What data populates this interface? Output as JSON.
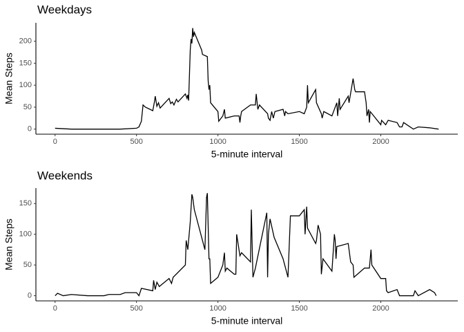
{
  "chart_data": [
    {
      "type": "line",
      "title": "Weekdays",
      "xlabel": "5-minute interval",
      "ylabel": "Mean Steps",
      "color": "#000000",
      "x": [
        0,
        100,
        200,
        300,
        400,
        500,
        515,
        530,
        540,
        555,
        600,
        610,
        615,
        625,
        635,
        645,
        700,
        710,
        720,
        730,
        745,
        755,
        800,
        810,
        815,
        820,
        830,
        835,
        840,
        845,
        850,
        855,
        900,
        905,
        935,
        940,
        945,
        950,
        955,
        1000,
        1005,
        1030,
        1040,
        1045,
        1100,
        1130,
        1135,
        1140,
        1145,
        1200,
        1230,
        1235,
        1245,
        1255,
        1305,
        1310,
        1320,
        1330,
        1340,
        1350,
        1400,
        1410,
        1415,
        1430,
        1500,
        1530,
        1545,
        1550,
        1555,
        1600,
        1605,
        1635,
        1640,
        1650,
        1700,
        1730,
        1735,
        1745,
        1750,
        1800,
        1805,
        1830,
        1840,
        1845,
        1900,
        1910,
        1915,
        1925,
        1930,
        1935,
        2000,
        2005,
        2030,
        2045,
        2100,
        2115,
        2130,
        2140,
        2200,
        2230,
        2300,
        2355
      ],
      "values": [
        2,
        0,
        0,
        0,
        0,
        2,
        5,
        18,
        55,
        50,
        42,
        62,
        75,
        52,
        60,
        48,
        70,
        58,
        62,
        55,
        68,
        62,
        80,
        70,
        78,
        65,
        180,
        205,
        195,
        230,
        210,
        220,
        180,
        170,
        165,
        110,
        90,
        100,
        60,
        40,
        18,
        30,
        45,
        25,
        30,
        30,
        15,
        30,
        40,
        55,
        55,
        80,
        45,
        55,
        35,
        25,
        20,
        40,
        25,
        40,
        45,
        30,
        40,
        35,
        40,
        35,
        50,
        100,
        60,
        90,
        60,
        35,
        25,
        40,
        30,
        60,
        30,
        70,
        45,
        75,
        60,
        115,
        90,
        85,
        85,
        60,
        30,
        45,
        15,
        40,
        10,
        20,
        10,
        20,
        15,
        5,
        5,
        15,
        0,
        5,
        3,
        0
      ],
      "xlim": [
        -117.75,
        2472.75
      ],
      "ylim": [
        -11.5,
        241.9
      ],
      "xticks": [
        0,
        500,
        1000,
        1500,
        2000
      ],
      "yticks": [
        0,
        50,
        100,
        150,
        200
      ]
    },
    {
      "type": "line",
      "title": "Weekends",
      "xlabel": "5-minute interval",
      "ylabel": "Mean Steps",
      "color": "#000000",
      "x": [
        0,
        15,
        50,
        100,
        200,
        300,
        330,
        400,
        430,
        500,
        515,
        530,
        600,
        605,
        615,
        625,
        640,
        700,
        715,
        725,
        800,
        805,
        815,
        830,
        840,
        845,
        855,
        920,
        930,
        935,
        945,
        950,
        955,
        1000,
        1030,
        1040,
        1045,
        1055,
        1100,
        1110,
        1115,
        1135,
        1145,
        1200,
        1205,
        1215,
        1230,
        1300,
        1305,
        1310,
        1320,
        1345,
        1400,
        1430,
        1445,
        1500,
        1530,
        1535,
        1545,
        1550,
        1600,
        1605,
        1615,
        1630,
        1635,
        1645,
        1700,
        1715,
        1720,
        1725,
        1730,
        1800,
        1815,
        1830,
        1835,
        1900,
        1930,
        1940,
        1945,
        2000,
        2030,
        2035,
        2045,
        2100,
        2115,
        2200,
        2210,
        2230,
        2300,
        2330,
        2340
      ],
      "values": [
        0,
        4,
        0,
        2,
        0,
        0,
        2,
        2,
        5,
        5,
        0,
        12,
        8,
        25,
        10,
        22,
        15,
        28,
        20,
        30,
        50,
        90,
        75,
        120,
        165,
        160,
        140,
        75,
        160,
        167,
        60,
        60,
        20,
        30,
        50,
        70,
        40,
        45,
        35,
        35,
        100,
        65,
        70,
        55,
        140,
        30,
        45,
        135,
        30,
        100,
        125,
        95,
        60,
        30,
        130,
        130,
        140,
        100,
        145,
        110,
        85,
        90,
        115,
        100,
        35,
        60,
        40,
        100,
        90,
        60,
        80,
        85,
        55,
        50,
        30,
        45,
        45,
        75,
        50,
        28,
        28,
        8,
        5,
        10,
        0,
        0,
        8,
        0,
        10,
        5,
        0
      ],
      "xlim": [
        -117.75,
        2472.75
      ],
      "ylim": [
        -8.4,
        175.1
      ],
      "xticks": [
        0,
        500,
        1000,
        1500,
        2000
      ],
      "yticks": [
        0,
        50,
        100,
        150
      ]
    }
  ]
}
